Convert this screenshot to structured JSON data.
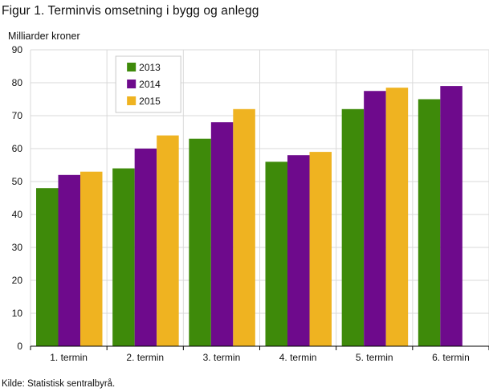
{
  "title": "Figur 1. Terminvis omsetning i bygg og anlegg",
  "source": "Kilde: Statistisk sentralbyrå.",
  "chart_data": {
    "type": "bar",
    "title": "Figur 1. Terminvis omsetning i bygg og anlegg",
    "ylabel": "Milliarder  kroner",
    "xlabel": "",
    "ylim": [
      0,
      90
    ],
    "yticks": [
      0,
      10,
      20,
      30,
      40,
      50,
      60,
      70,
      80,
      90
    ],
    "grid": true,
    "legend_position": "top-left",
    "categories": [
      "1. termin",
      "2. termin",
      "3. termin",
      "4. termin",
      "5. termin",
      "6. termin"
    ],
    "series": [
      {
        "name": "2013",
        "color": "#3e8a0a",
        "values": [
          48,
          54,
          63,
          56,
          72,
          75
        ]
      },
      {
        "name": "2014",
        "color": "#6e0a8c",
        "values": [
          52,
          60,
          68,
          58,
          77.5,
          79
        ]
      },
      {
        "name": "2015",
        "color": "#efb321",
        "values": [
          53,
          64,
          72,
          59,
          78.5,
          null
        ]
      }
    ]
  }
}
